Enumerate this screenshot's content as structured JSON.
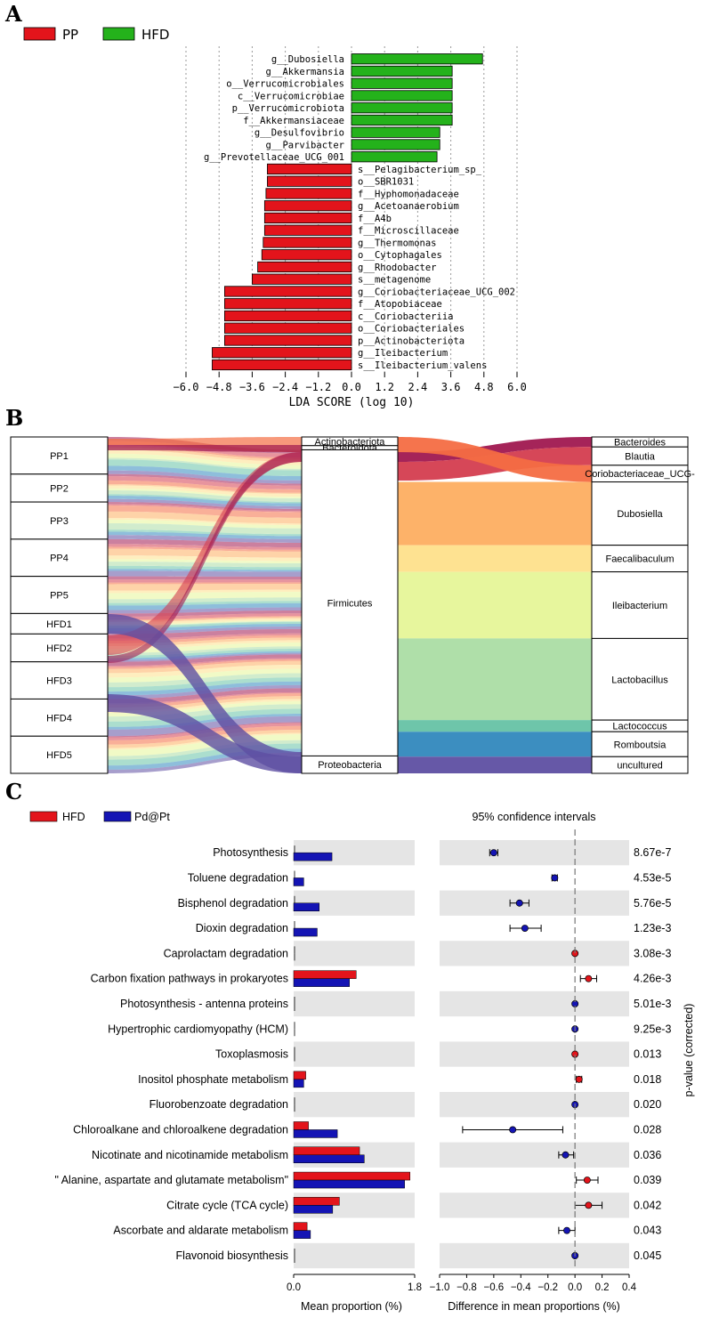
{
  "panels": {
    "a": "A",
    "b": "B",
    "c": "C"
  },
  "colors": {
    "pp": "#e3141b",
    "hfd": "#24b21b",
    "blue": "#1414b4",
    "red": "#e3141b"
  },
  "chart_data": [
    {
      "type": "bar",
      "title": "",
      "legend": [
        {
          "name": "PP",
          "color": "#e3141b"
        },
        {
          "name": "HFD",
          "color": "#24b21b"
        }
      ],
      "xlabel": "LDA SCORE (log 10)",
      "xlim": [
        -6.0,
        6.0
      ],
      "xticks": [
        "−6.0",
        "−4.8",
        "−3.6",
        "−2.4",
        "−1.2",
        "0.0",
        "1.2",
        "2.4",
        "3.6",
        "4.8",
        "6.0"
      ],
      "tick_values": [
        -6.0,
        -4.8,
        -3.6,
        -2.4,
        -1.2,
        0.0,
        1.2,
        2.4,
        3.6,
        4.8,
        6.0
      ],
      "bars": [
        {
          "label": "g__Dubosiella",
          "value": 4.75,
          "group": "HFD"
        },
        {
          "label": "g__Akkermansia",
          "value": 3.65,
          "group": "HFD"
        },
        {
          "label": "o__Verrucomicrobiales",
          "value": 3.65,
          "group": "HFD"
        },
        {
          "label": "c__Verrucomicrobiae",
          "value": 3.65,
          "group": "HFD"
        },
        {
          "label": "p__Verrucomicrobiota",
          "value": 3.65,
          "group": "HFD"
        },
        {
          "label": "f__Akkermansiaceae",
          "value": 3.65,
          "group": "HFD"
        },
        {
          "label": "g__Desulfovibrio",
          "value": 3.2,
          "group": "HFD"
        },
        {
          "label": "g__Parvibacter",
          "value": 3.2,
          "group": "HFD"
        },
        {
          "label": "g__Prevotellaceae_UCG_001",
          "value": 3.1,
          "group": "HFD"
        },
        {
          "label": "s__Pelagibacterium_sp_",
          "value": -3.05,
          "group": "PP"
        },
        {
          "label": "o__SBR1031",
          "value": -3.05,
          "group": "PP"
        },
        {
          "label": "f__Hyphomonadaceae",
          "value": -3.1,
          "group": "PP"
        },
        {
          "label": "g__Acetoanaerobium",
          "value": -3.15,
          "group": "PP"
        },
        {
          "label": "f__A4b",
          "value": -3.15,
          "group": "PP"
        },
        {
          "label": "f__Microscillaceae",
          "value": -3.15,
          "group": "PP"
        },
        {
          "label": "g__Thermomonas",
          "value": -3.2,
          "group": "PP"
        },
        {
          "label": "o__Cytophagales",
          "value": -3.25,
          "group": "PP"
        },
        {
          "label": "g__Rhodobacter",
          "value": -3.4,
          "group": "PP"
        },
        {
          "label": "s__metagenome",
          "value": -3.6,
          "group": "PP"
        },
        {
          "label": "g__Coriobacteriaceae_UCG_002",
          "value": -4.6,
          "group": "PP"
        },
        {
          "label": "f__Atopobiaceae",
          "value": -4.6,
          "group": "PP"
        },
        {
          "label": "c__Coriobacteriia",
          "value": -4.6,
          "group": "PP"
        },
        {
          "label": "o__Coriobacteriales",
          "value": -4.6,
          "group": "PP"
        },
        {
          "label": "p__Actinobacteriota",
          "value": -4.6,
          "group": "PP"
        },
        {
          "label": "g__Ileibacterium",
          "value": -5.05,
          "group": "PP"
        },
        {
          "label": "s__Ileibacterium_valens",
          "value": -5.05,
          "group": "PP"
        }
      ]
    },
    {
      "type": "sankey",
      "samples": [
        {
          "name": "PP1",
          "weight": 1.0
        },
        {
          "name": "PP2",
          "weight": 0.75
        },
        {
          "name": "PP3",
          "weight": 1.0
        },
        {
          "name": "PP4",
          "weight": 1.0
        },
        {
          "name": "PP5",
          "weight": 1.0
        },
        {
          "name": "HFD1",
          "weight": 0.55
        },
        {
          "name": "HFD2",
          "weight": 0.75
        },
        {
          "name": "HFD3",
          "weight": 1.0
        },
        {
          "name": "HFD4",
          "weight": 1.0
        },
        {
          "name": "HFD5",
          "weight": 1.0
        }
      ],
      "phyla": [
        {
          "name": "Actinobacteriota",
          "weight": 0.25
        },
        {
          "name": "Bacteroidota",
          "weight": 0.12
        },
        {
          "name": "Firmicutes",
          "weight": 8.8
        },
        {
          "name": "Proteobacteria",
          "weight": 0.5
        }
      ],
      "genera": [
        {
          "name": "Bacteroides",
          "weight": 0.3,
          "color": "#a01850"
        },
        {
          "name": "Blautia",
          "weight": 0.55,
          "color": "#d43d4f"
        },
        {
          "name": "Coriobacteriaceae_UCG-",
          "weight": 0.5,
          "color": "#f46d43"
        },
        {
          "name": "Dubosiella",
          "weight": 1.9,
          "color": "#fdae61"
        },
        {
          "name": "Faecalibaculum",
          "weight": 0.8,
          "color": "#fee08b"
        },
        {
          "name": "Ileibacterium",
          "weight": 2.0,
          "color": "#e6f598"
        },
        {
          "name": "Lactobacillus",
          "weight": 2.45,
          "color": "#abdda4"
        },
        {
          "name": "Lactococcus",
          "weight": 0.35,
          "color": "#66c2a5"
        },
        {
          "name": "Romboutsia",
          "weight": 0.75,
          "color": "#3288bd"
        },
        {
          "name": "uncultured",
          "weight": 0.5,
          "color": "#5e4fa2"
        }
      ]
    },
    {
      "type": "bar",
      "legend": [
        {
          "name": "HFD",
          "color": "#e3141b"
        },
        {
          "name": "Pd@Pt",
          "color": "#1414b4"
        }
      ],
      "ci_title": "95% confidence intervals",
      "xlabel_left": "Mean proportion (%)",
      "xlabel_right": "Difference in mean proportions (%)",
      "ylabel_right": "p-value (corrected)",
      "left_xlim": [
        0.0,
        1.8
      ],
      "left_ticks": [
        "0.0",
        "1.8"
      ],
      "left_tick_values": [
        0.0,
        1.8
      ],
      "right_xlim": [
        -1.0,
        0.4
      ],
      "right_ticks": [
        "−1.0",
        "−0.8",
        "−0.6",
        "−0.4",
        "−0.2",
        "0.0",
        "0.2",
        "0.4"
      ],
      "right_tick_values": [
        -1.0,
        -0.8,
        -0.6,
        -0.4,
        -0.2,
        0.0,
        0.2,
        0.4
      ],
      "rows": [
        {
          "label": "Photosynthesis",
          "hfd": 0.0,
          "pdpt": 0.57,
          "diff": -0.6,
          "lo": -0.63,
          "hi": -0.57,
          "p": "8.67e-7"
        },
        {
          "label": "Toluene degradation",
          "hfd": 0.0,
          "pdpt": 0.15,
          "diff": -0.15,
          "lo": -0.17,
          "hi": -0.13,
          "p": "4.53e-5"
        },
        {
          "label": "Bisphenol degradation",
          "hfd": 0.0,
          "pdpt": 0.38,
          "diff": -0.41,
          "lo": -0.48,
          "hi": -0.34,
          "p": "5.76e-5"
        },
        {
          "label": "Dioxin degradation",
          "hfd": 0.0,
          "pdpt": 0.35,
          "diff": -0.37,
          "lo": -0.48,
          "hi": -0.25,
          "p": "1.23e-3"
        },
        {
          "label": "Caprolactam degradation",
          "hfd": 0.0,
          "pdpt": 0.0,
          "diff": 0.0,
          "lo": -0.005,
          "hi": 0.005,
          "p": "3.08e-3",
          "sign": "pos"
        },
        {
          "label": "Carbon fixation pathways in prokaryotes",
          "hfd": 0.93,
          "pdpt": 0.83,
          "diff": 0.1,
          "lo": 0.04,
          "hi": 0.16,
          "p": "4.26e-3"
        },
        {
          "label": "Photosynthesis - antenna proteins",
          "hfd": 0.0,
          "pdpt": 0.0,
          "diff": 0.0,
          "lo": -0.005,
          "hi": 0.005,
          "p": "5.01e-3",
          "sign": "neg"
        },
        {
          "label": "Hypertrophic cardiomyopathy (HCM)",
          "hfd": 0.0,
          "pdpt": 0.0,
          "diff": 0.0,
          "lo": -0.005,
          "hi": 0.005,
          "p": "9.25e-3",
          "sign": "neg"
        },
        {
          "label": "Toxoplasmosis",
          "hfd": 0.0,
          "pdpt": 0.0,
          "diff": 0.0,
          "lo": -0.005,
          "hi": 0.005,
          "p": "0.013",
          "sign": "pos"
        },
        {
          "label": "Inositol phosphate metabolism",
          "hfd": 0.18,
          "pdpt": 0.15,
          "diff": 0.03,
          "lo": 0.01,
          "hi": 0.05,
          "p": "0.018"
        },
        {
          "label": "Fluorobenzoate degradation",
          "hfd": 0.0,
          "pdpt": 0.0,
          "diff": 0.0,
          "lo": -0.005,
          "hi": 0.005,
          "p": "0.020",
          "sign": "neg"
        },
        {
          "label": "Chloroalkane and chloroalkene degradation",
          "hfd": 0.22,
          "pdpt": 0.65,
          "diff": -0.46,
          "lo": -0.83,
          "hi": -0.09,
          "p": "0.028"
        },
        {
          "label": "Nicotinate and nicotinamide metabolism",
          "hfd": 0.98,
          "pdpt": 1.05,
          "diff": -0.07,
          "lo": -0.12,
          "hi": -0.01,
          "p": "0.036"
        },
        {
          "label": "\" Alanine, aspartate and glutamate metabolism\"",
          "hfd": 1.73,
          "pdpt": 1.65,
          "diff": 0.09,
          "lo": 0.01,
          "hi": 0.17,
          "p": "0.039"
        },
        {
          "label": "Citrate cycle (TCA cycle)",
          "hfd": 0.68,
          "pdpt": 0.58,
          "diff": 0.1,
          "lo": 0.0,
          "hi": 0.2,
          "p": "0.042"
        },
        {
          "label": "Ascorbate and aldarate metabolism",
          "hfd": 0.2,
          "pdpt": 0.25,
          "diff": -0.06,
          "lo": -0.12,
          "hi": 0.0,
          "p": "0.043"
        },
        {
          "label": "Flavonoid biosynthesis",
          "hfd": 0.0,
          "pdpt": 0.0,
          "diff": 0.0,
          "lo": -0.005,
          "hi": 0.005,
          "p": "0.045",
          "sign": "neg"
        }
      ]
    }
  ]
}
